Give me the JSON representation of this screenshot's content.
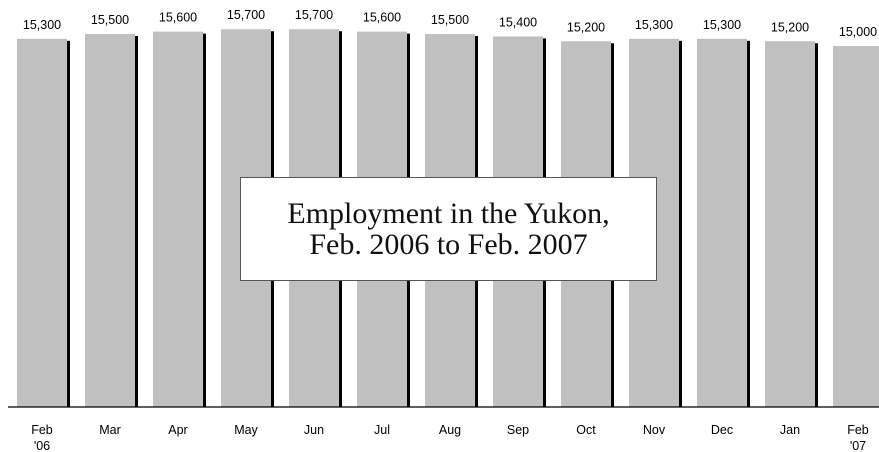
{
  "chart_data": {
    "type": "bar",
    "title": "Employment in the Yukon,\nFeb. 2006 to Feb. 2007",
    "categories": [
      "Feb\n'06",
      "Mar",
      "Apr",
      "May",
      "Jun",
      "Jul",
      "Aug",
      "Sep",
      "Oct",
      "Nov",
      "Dec",
      "Jan",
      "Feb\n'07"
    ],
    "values": [
      15300,
      15500,
      15600,
      15700,
      15700,
      15600,
      15500,
      15400,
      15200,
      15300,
      15300,
      15200,
      15000
    ],
    "value_labels": [
      "15,300",
      "15,500",
      "15,600",
      "15,700",
      "15,700",
      "15,600",
      "15,500",
      "15,400",
      "15,200",
      "15,300",
      "15,300",
      "15,200",
      "15,000"
    ],
    "color": "#c0c0c0",
    "ylim": [
      0,
      16000
    ]
  }
}
